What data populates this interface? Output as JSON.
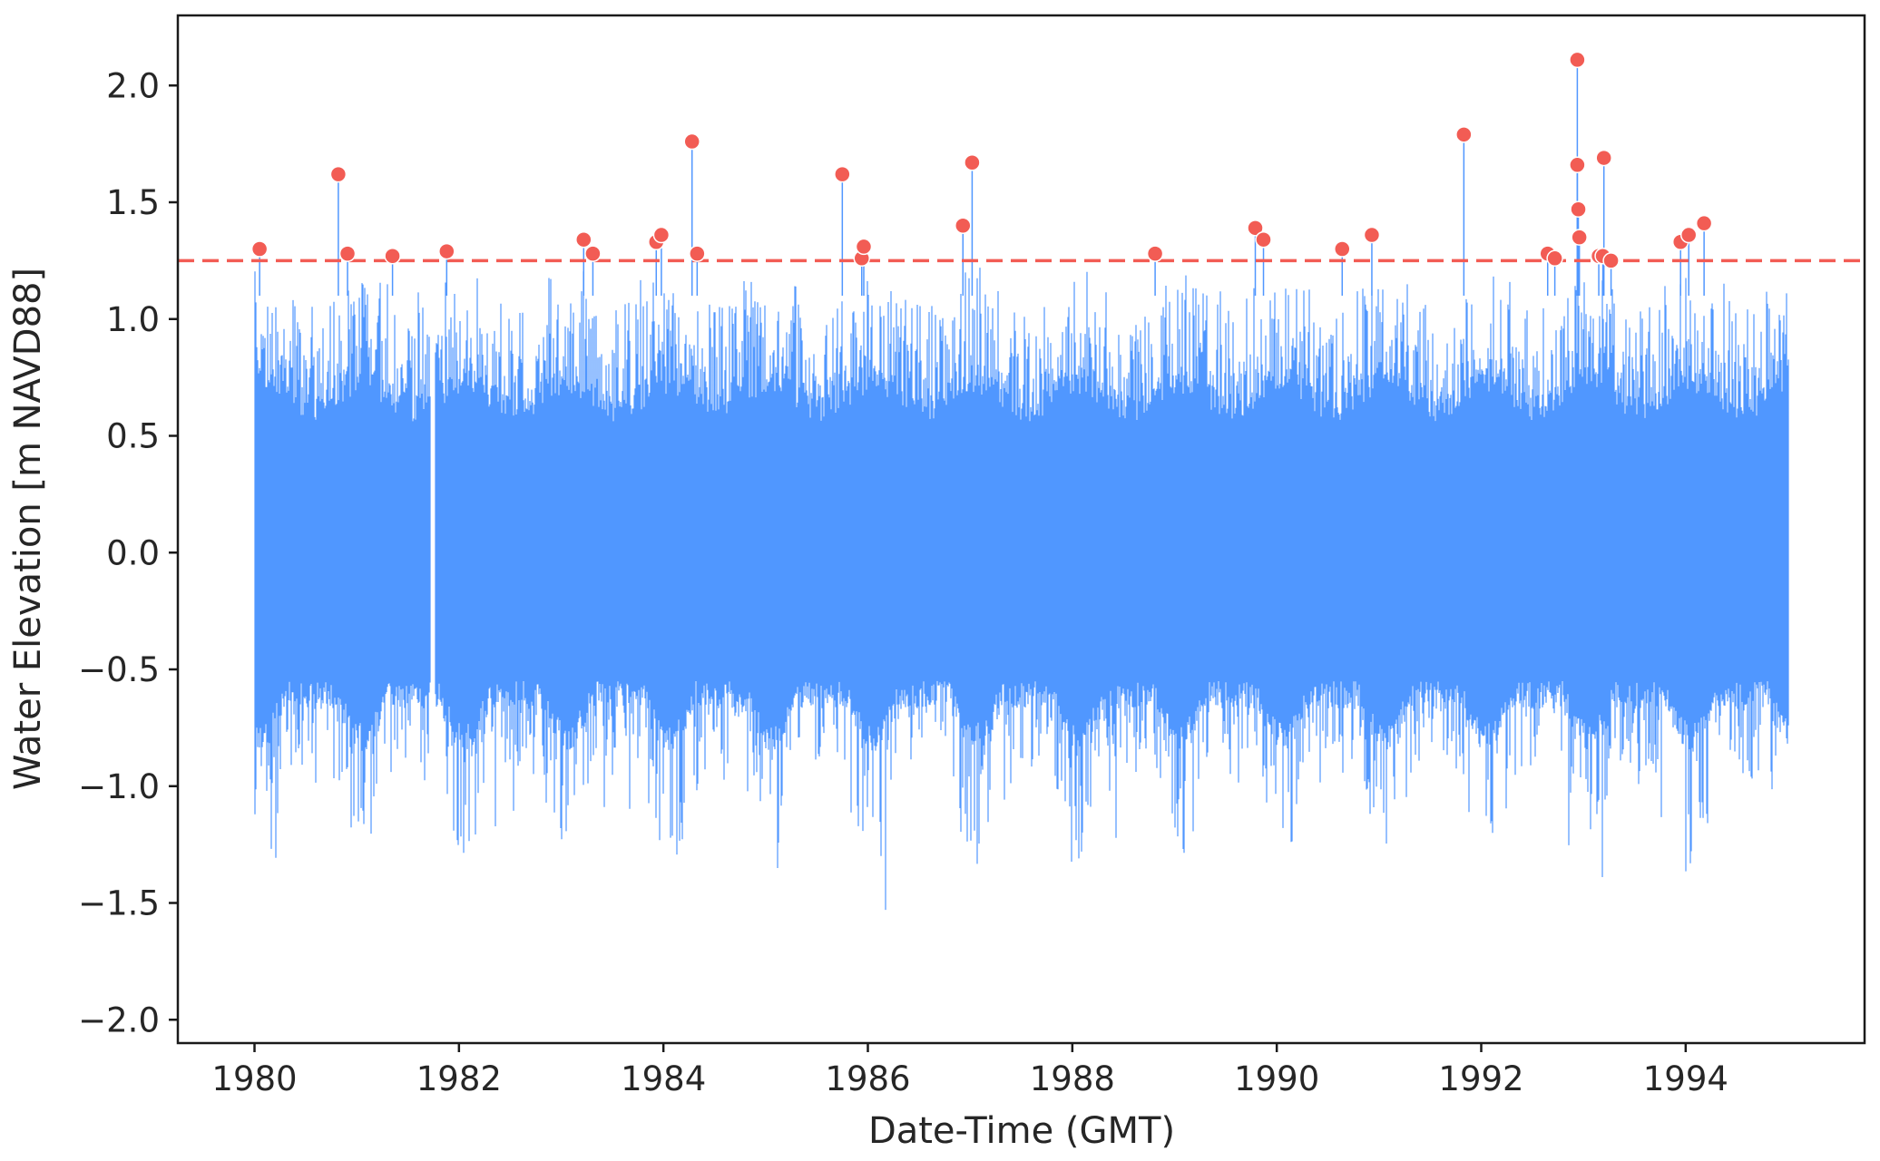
{
  "chart_data": {
    "type": "line",
    "xlabel": "Date-Time (GMT)",
    "ylabel": "Water Elevation [m NAVD88]",
    "xlim": [
      1979.25,
      1995.75
    ],
    "ylim": [
      -2.1,
      2.3
    ],
    "x_ticks": [
      1980,
      1982,
      1984,
      1986,
      1988,
      1990,
      1992,
      1994
    ],
    "x_tick_labels": [
      "1980",
      "1982",
      "1984",
      "1986",
      "1988",
      "1990",
      "1992",
      "1994"
    ],
    "y_ticks": [
      -2.0,
      -1.5,
      -1.0,
      -0.5,
      0.0,
      0.5,
      1.0,
      1.5,
      2.0
    ],
    "y_tick_labels": [
      "−2.0",
      "−1.5",
      "−1.0",
      "−0.5",
      "0.0",
      "0.5",
      "1.0",
      "1.5",
      "2.0"
    ],
    "grid": false,
    "threshold": 1.25,
    "series_range": [
      1980.0,
      1995.0
    ],
    "data_gap": [
      1981.72,
      1981.77
    ],
    "colors": {
      "series": "#5097ff",
      "peaks": "#f25c54",
      "threshold": "#f25c54",
      "frame": "#1a1a1a",
      "text": "#262626"
    },
    "peaks": [
      {
        "x": 1980.05,
        "y": 1.3
      },
      {
        "x": 1980.82,
        "y": 1.62
      },
      {
        "x": 1980.91,
        "y": 1.28
      },
      {
        "x": 1981.35,
        "y": 1.27
      },
      {
        "x": 1981.88,
        "y": 1.29
      },
      {
        "x": 1983.22,
        "y": 1.34
      },
      {
        "x": 1983.31,
        "y": 1.28
      },
      {
        "x": 1983.93,
        "y": 1.33
      },
      {
        "x": 1983.98,
        "y": 1.36
      },
      {
        "x": 1984.28,
        "y": 1.76
      },
      {
        "x": 1984.33,
        "y": 1.28
      },
      {
        "x": 1985.75,
        "y": 1.62
      },
      {
        "x": 1985.94,
        "y": 1.26
      },
      {
        "x": 1985.96,
        "y": 1.31
      },
      {
        "x": 1986.93,
        "y": 1.4
      },
      {
        "x": 1987.02,
        "y": 1.67
      },
      {
        "x": 1988.81,
        "y": 1.28
      },
      {
        "x": 1989.79,
        "y": 1.39
      },
      {
        "x": 1989.87,
        "y": 1.34
      },
      {
        "x": 1990.64,
        "y": 1.3
      },
      {
        "x": 1990.93,
        "y": 1.36
      },
      {
        "x": 1991.83,
        "y": 1.79
      },
      {
        "x": 1992.65,
        "y": 1.28
      },
      {
        "x": 1992.72,
        "y": 1.26
      },
      {
        "x": 1992.94,
        "y": 2.11
      },
      {
        "x": 1992.94,
        "y": 1.66
      },
      {
        "x": 1992.95,
        "y": 1.47
      },
      {
        "x": 1992.96,
        "y": 1.35
      },
      {
        "x": 1993.15,
        "y": 1.27
      },
      {
        "x": 1993.19,
        "y": 1.27
      },
      {
        "x": 1993.2,
        "y": 1.69
      },
      {
        "x": 1993.27,
        "y": 1.25
      },
      {
        "x": 1993.95,
        "y": 1.33
      },
      {
        "x": 1994.03,
        "y": 1.36
      },
      {
        "x": 1994.18,
        "y": 1.41
      }
    ]
  }
}
